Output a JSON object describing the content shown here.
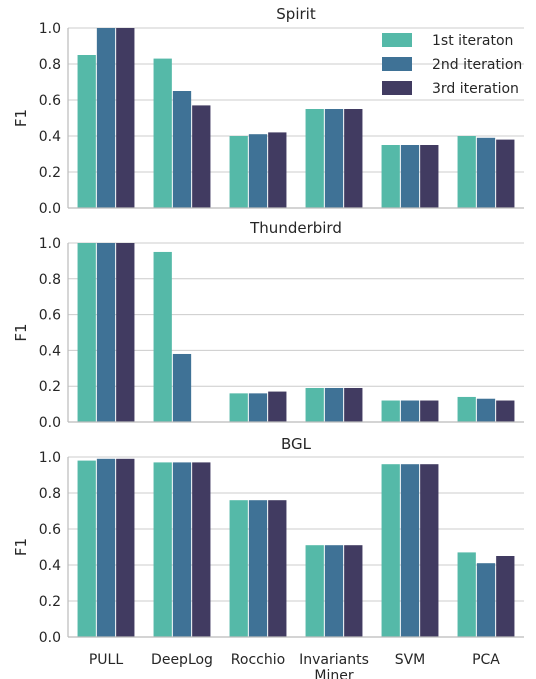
{
  "colors": {
    "series": [
      "#55b9a8",
      "#3f7296",
      "#413b61"
    ],
    "grid": "#cccccc",
    "text": "#262626",
    "axis": "#bbbbbb"
  },
  "chart_data": [
    {
      "type": "bar",
      "title": "Spirit",
      "ylabel": "F1",
      "ylim": [
        0,
        1.0
      ],
      "yticks": [
        "0.0",
        "0.2",
        "0.4",
        "0.6",
        "0.8",
        "1.0"
      ],
      "categories": [
        "PULL",
        "DeepLog",
        "Rocchio",
        "Invariants Miner",
        "SVM",
        "PCA"
      ],
      "legend": "top-right",
      "grid": true,
      "series": [
        {
          "name": "1st iteraton",
          "values": [
            0.85,
            0.83,
            0.4,
            0.55,
            0.35,
            0.4
          ]
        },
        {
          "name": "2nd iteration",
          "values": [
            1.0,
            0.65,
            0.41,
            0.55,
            0.35,
            0.39
          ]
        },
        {
          "name": "3rd iteration",
          "values": [
            1.0,
            0.57,
            0.42,
            0.55,
            0.35,
            0.38
          ]
        }
      ]
    },
    {
      "type": "bar",
      "title": "Thunderbird",
      "ylabel": "F1",
      "ylim": [
        0,
        1.0
      ],
      "yticks": [
        "0.0",
        "0.2",
        "0.4",
        "0.6",
        "0.8",
        "1.0"
      ],
      "categories": [
        "PULL",
        "DeepLog",
        "Rocchio",
        "Invariants Miner",
        "SVM",
        "PCA"
      ],
      "grid": true,
      "series": [
        {
          "name": "1st iteraton",
          "values": [
            1.0,
            0.95,
            0.16,
            0.19,
            0.12,
            0.14
          ]
        },
        {
          "name": "2nd iteration",
          "values": [
            1.0,
            0.38,
            0.16,
            0.19,
            0.12,
            0.13
          ]
        },
        {
          "name": "3rd iteration",
          "values": [
            1.0,
            0.0,
            0.17,
            0.19,
            0.12,
            0.12
          ]
        }
      ]
    },
    {
      "type": "bar",
      "title": "BGL",
      "ylabel": "F1",
      "ylim": [
        0,
        1.0
      ],
      "yticks": [
        "0.0",
        "0.2",
        "0.4",
        "0.6",
        "0.8",
        "1.0"
      ],
      "categories": [
        "PULL",
        "DeepLog",
        "Rocchio",
        "Invariants Miner",
        "SVM",
        "PCA"
      ],
      "grid": true,
      "series": [
        {
          "name": "1st iteraton",
          "values": [
            0.98,
            0.97,
            0.76,
            0.51,
            0.96,
            0.47
          ]
        },
        {
          "name": "2nd iteration",
          "values": [
            0.99,
            0.97,
            0.76,
            0.51,
            0.96,
            0.41
          ]
        },
        {
          "name": "3rd iteration",
          "values": [
            0.99,
            0.97,
            0.76,
            0.51,
            0.96,
            0.45
          ]
        }
      ]
    }
  ]
}
